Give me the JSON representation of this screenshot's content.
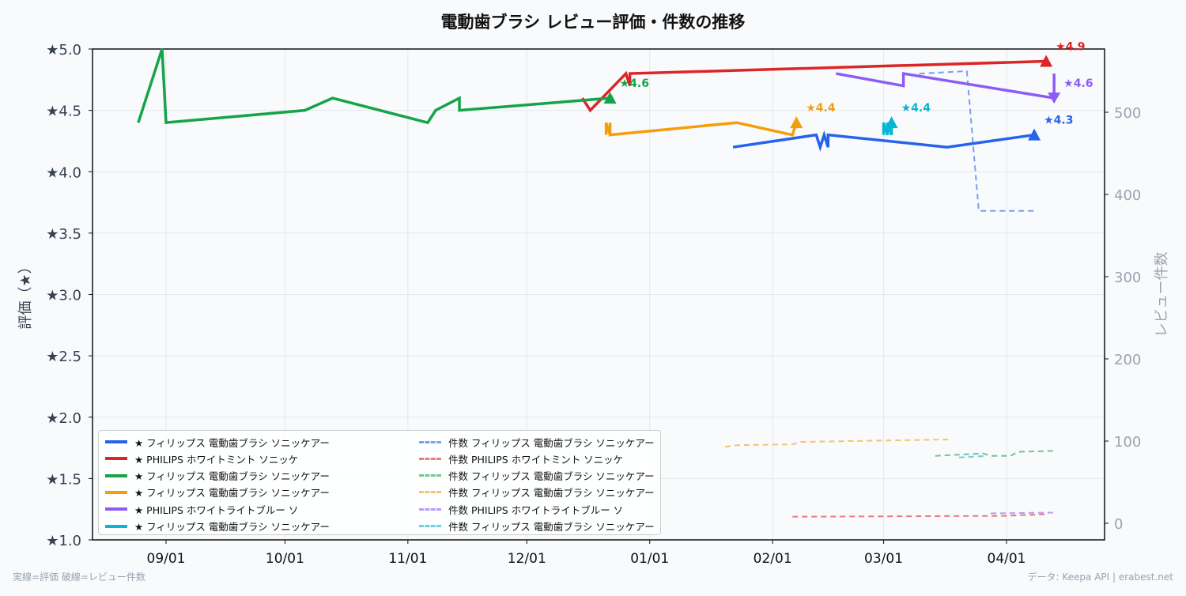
{
  "chart_data": {
    "type": "line",
    "title": "電動歯ブラシ レビュー評価・件数の推移",
    "ylabel": "評価（★）",
    "y2label": "レビュー件数",
    "x_ticks": [
      "09/01",
      "10/01",
      "11/01",
      "12/01",
      "01/01",
      "02/01",
      "03/01",
      "04/01"
    ],
    "y_ticks": [
      "★1.0",
      "★1.5",
      "★2.0",
      "★2.5",
      "★3.0",
      "★3.5",
      "★4.0",
      "★4.5",
      "★5.0"
    ],
    "y_tick_values": [
      1.0,
      1.5,
      2.0,
      2.5,
      3.0,
      3.5,
      4.0,
      4.5,
      5.0
    ],
    "y2_ticks": [
      "0",
      "100",
      "200",
      "300",
      "400",
      "500"
    ],
    "y2_tick_values": [
      0,
      100,
      200,
      300,
      400,
      500
    ],
    "ylim": [
      1.0,
      5.0
    ],
    "y2lim": [
      -20,
      577
    ],
    "xlim": [
      "08/19",
      "04/25"
    ],
    "grid": true,
    "legend_placement": "lower-left",
    "rating_series": [
      {
        "name": "★ フィリップス 電動歯ブラシ ソニッケアー",
        "color": "#2563eb",
        "marker": "up",
        "end_label": "★4.3",
        "points": [
          [
            "01/22",
            4.2
          ],
          [
            "02/12",
            4.3
          ],
          [
            "02/13",
            4.2
          ],
          [
            "02/14",
            4.3
          ],
          [
            "02/15",
            4.2
          ],
          [
            "02/15",
            4.3
          ],
          [
            "03/17",
            4.2
          ],
          [
            "04/08",
            4.3
          ]
        ]
      },
      {
        "name": "★ PHILIPS ホワイトミント ソニッケ",
        "color": "#dc2626",
        "marker": "up",
        "end_label": "★4.9",
        "points": [
          [
            "12/15",
            4.6
          ],
          [
            "12/17",
            4.5
          ],
          [
            "12/26",
            4.8
          ],
          [
            "12/27",
            4.7
          ],
          [
            "12/27",
            4.8
          ],
          [
            "04/11",
            4.9
          ]
        ]
      },
      {
        "name": "★ フィリップス 電動歯ブラシ ソニッケアー",
        "color": "#16a34a",
        "marker": "up",
        "end_label": "★4.6",
        "points": [
          [
            "08/25",
            4.4
          ],
          [
            "08/31",
            5.0
          ],
          [
            "09/01",
            4.4
          ],
          [
            "10/06",
            4.5
          ],
          [
            "10/13",
            4.6
          ],
          [
            "11/06",
            4.4
          ],
          [
            "11/08",
            4.5
          ],
          [
            "11/14",
            4.6
          ],
          [
            "11/14",
            4.5
          ],
          [
            "12/22",
            4.6
          ]
        ]
      },
      {
        "name": "★ フィリップス 電動歯ブラシ ソニッケアー",
        "color": "#f59e0b",
        "marker": "up",
        "end_label": "★4.4",
        "points": [
          [
            "12/21",
            4.3
          ],
          [
            "12/21",
            4.4
          ],
          [
            "12/22",
            4.3
          ],
          [
            "12/22",
            4.4
          ],
          [
            "12/22",
            4.3
          ],
          [
            "01/23",
            4.4
          ],
          [
            "02/06",
            4.3
          ],
          [
            "02/07",
            4.4
          ]
        ]
      },
      {
        "name": "★ PHILIPS ホワイトライトブルー ソ",
        "color": "#8b5cf6",
        "marker": "down",
        "end_label": "★4.6",
        "points": [
          [
            "02/17",
            4.8
          ],
          [
            "03/06",
            4.7
          ],
          [
            "03/06",
            4.8
          ],
          [
            "04/13",
            4.6
          ],
          [
            "04/13",
            4.8
          ],
          [
            "04/13",
            4.6
          ]
        ]
      },
      {
        "name": "★ フィリップス 電動歯ブラシ ソニッケアー",
        "color": "#06b6d4",
        "marker": "up",
        "end_label": "★4.4",
        "points": [
          [
            "03/01",
            4.3
          ],
          [
            "03/01",
            4.4
          ],
          [
            "03/02",
            4.3
          ],
          [
            "03/02",
            4.4
          ],
          [
            "03/03",
            4.3
          ],
          [
            "03/03",
            4.4
          ]
        ]
      }
    ],
    "count_series": [
      {
        "name": "件数 フィリップス 電動歯ブラシ ソニッケアー",
        "color": "#2563eb",
        "points": [
          [
            "03/10",
            547
          ],
          [
            "03/22",
            550
          ],
          [
            "03/25",
            380
          ],
          [
            "04/08",
            380
          ]
        ]
      },
      {
        "name": "件数 PHILIPS ホワイトミント ソニッケ",
        "color": "#dc2626",
        "points": [
          [
            "02/06",
            8
          ],
          [
            "03/31",
            9
          ],
          [
            "04/11",
            11
          ]
        ]
      },
      {
        "name": "件数 フィリップス 電動歯ブラシ ソニッケアー",
        "color": "#16a34a",
        "points": [
          [
            "03/14",
            82
          ],
          [
            "03/26",
            85
          ],
          [
            "03/28",
            82
          ],
          [
            "04/02",
            82
          ],
          [
            "04/04",
            87
          ],
          [
            "04/13",
            88
          ]
        ]
      },
      {
        "name": "件数 フィリップス 電動歯ブラシ ソニッケアー",
        "color": "#f59e0b",
        "points": [
          [
            "01/20",
            93
          ],
          [
            "01/23",
            95
          ],
          [
            "02/06",
            96
          ],
          [
            "02/08",
            99
          ],
          [
            "03/18",
            102
          ]
        ]
      },
      {
        "name": "件数 PHILIPS ホワイトライトブルー ソ",
        "color": "#8b5cf6",
        "points": [
          [
            "03/28",
            12
          ],
          [
            "04/13",
            13
          ]
        ]
      },
      {
        "name": "件数 フィリップス 電動歯ブラシ ソニッケアー",
        "color": "#06b6d4",
        "points": [
          [
            "03/20",
            80
          ],
          [
            "03/27",
            82
          ]
        ]
      }
    ]
  },
  "footer": {
    "left": "実線=評価 破線=レビュー件数",
    "right": "データ: Keepa API | erabest.net"
  }
}
